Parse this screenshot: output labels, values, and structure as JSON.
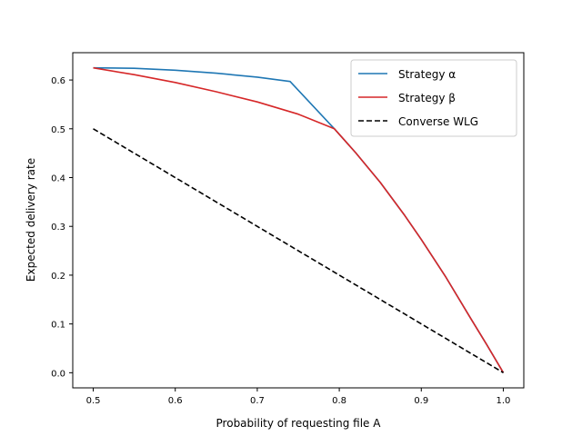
{
  "chart_data": {
    "type": "line",
    "xlabel": "Probability of requesting file A",
    "ylabel": "Expected delivery rate",
    "xlim": [
      0.475,
      1.025
    ],
    "ylim": [
      -0.031,
      0.656
    ],
    "xticks": [
      0.5,
      0.6,
      0.7,
      0.8,
      0.9,
      1.0
    ],
    "xtick_labels": [
      "0.5",
      "0.6",
      "0.7",
      "0.8",
      "0.9",
      "1.0"
    ],
    "yticks": [
      0.0,
      0.1,
      0.2,
      0.3,
      0.4,
      0.5,
      0.6
    ],
    "ytick_labels": [
      "0.0",
      "0.1",
      "0.2",
      "0.3",
      "0.4",
      "0.5",
      "0.6"
    ],
    "grid": false,
    "legend_position": "top-right",
    "series": [
      {
        "name": "Strategy α",
        "color": "#1f77b4",
        "dashed": false,
        "x": [
          0.5,
          0.55,
          0.6,
          0.65,
          0.7,
          0.74,
          0.794,
          0.82,
          0.85,
          0.88,
          0.9,
          0.93,
          0.96,
          0.98,
          1.0
        ],
        "y": [
          0.625,
          0.624,
          0.62,
          0.614,
          0.606,
          0.597,
          0.5,
          0.451,
          0.39,
          0.322,
          0.273,
          0.196,
          0.112,
          0.057,
          0.0
        ]
      },
      {
        "name": "Strategy β",
        "color": "#d62728",
        "dashed": false,
        "x": [
          0.5,
          0.55,
          0.6,
          0.65,
          0.7,
          0.75,
          0.794,
          0.82,
          0.85,
          0.88,
          0.9,
          0.93,
          0.96,
          0.98,
          1.0
        ],
        "y": [
          0.625,
          0.611,
          0.595,
          0.576,
          0.555,
          0.53,
          0.5,
          0.451,
          0.39,
          0.322,
          0.273,
          0.196,
          0.112,
          0.057,
          0.0
        ]
      },
      {
        "name": "Converse WLG",
        "color": "#000000",
        "dashed": true,
        "x": [
          0.5,
          1.0
        ],
        "y": [
          0.5,
          0.0
        ]
      }
    ]
  }
}
